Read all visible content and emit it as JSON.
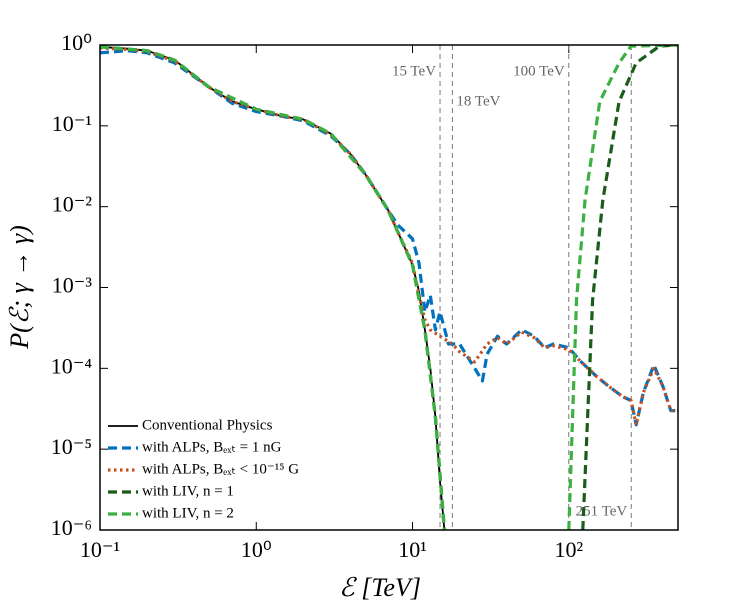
{
  "chart_data": {
    "type": "line",
    "xlabel": "ℰ [TeV]",
    "ylabel": "P(ℰ; γ → γ)",
    "xscale": "log",
    "yscale": "log",
    "xlim": [
      0.1,
      500
    ],
    "ylim": [
      1e-06,
      1
    ],
    "xticks": [
      {
        "value": 0.1,
        "label": "10⁻¹"
      },
      {
        "value": 1,
        "label": "10⁰"
      },
      {
        "value": 10,
        "label": "10¹"
      },
      {
        "value": 100,
        "label": "10²"
      }
    ],
    "yticks": [
      {
        "value": 1e-06,
        "label": "10⁻⁶"
      },
      {
        "value": 1e-05,
        "label": "10⁻⁵"
      },
      {
        "value": 0.0001,
        "label": "10⁻⁴"
      },
      {
        "value": 0.001,
        "label": "10⁻³"
      },
      {
        "value": 0.01,
        "label": "10⁻²"
      },
      {
        "value": 0.1,
        "label": "10⁻¹"
      },
      {
        "value": 1,
        "label": "10⁰"
      }
    ],
    "grid": false,
    "legend": "lower left",
    "annotations": [
      {
        "x": 15,
        "label": "15 TeV"
      },
      {
        "x": 18,
        "label": "18 TeV"
      },
      {
        "x": 100,
        "label": "100 TeV"
      },
      {
        "x": 251,
        "label": "251 TeV"
      }
    ],
    "series": [
      {
        "name": "Conventional Physics",
        "color": "#000000",
        "dash": "solid",
        "x": [
          0.1,
          0.15,
          0.2,
          0.3,
          0.5,
          0.7,
          1,
          1.5,
          2,
          3,
          4,
          5,
          7,
          8,
          10,
          11,
          12,
          13,
          14,
          15,
          16
        ],
        "values": [
          0.95,
          0.9,
          0.85,
          0.65,
          0.3,
          0.2,
          0.16,
          0.13,
          0.12,
          0.08,
          0.045,
          0.025,
          0.009,
          0.005,
          0.0019,
          0.0009,
          0.0003,
          0.0001,
          2.5e-05,
          4e-06,
          1e-06
        ]
      },
      {
        "name": "with ALPs, Bₑₓₜ = 1 nG",
        "color": "#0072bd",
        "dash": "dashed",
        "x": [
          0.1,
          0.15,
          0.2,
          0.3,
          0.5,
          0.7,
          1,
          1.5,
          2,
          3,
          4,
          5,
          7,
          8,
          10,
          11,
          12,
          13,
          14,
          15,
          17,
          20,
          25,
          28,
          30,
          35,
          40,
          50,
          60,
          70,
          80,
          100,
          120,
          150,
          180,
          220,
          250,
          270,
          300,
          350,
          400,
          450,
          500
        ],
        "values": [
          0.8,
          0.85,
          0.8,
          0.6,
          0.3,
          0.19,
          0.15,
          0.13,
          0.115,
          0.075,
          0.045,
          0.025,
          0.009,
          0.006,
          0.004,
          0.002,
          0.0005,
          0.0008,
          0.0003,
          0.0005,
          0.0002,
          0.0002,
          0.0001,
          7e-05,
          0.00015,
          0.00025,
          0.0002,
          0.0003,
          0.00025,
          0.00018,
          0.0002,
          0.00018,
          0.00012,
          8e-05,
          6e-05,
          4.5e-05,
          4e-05,
          2e-05,
          5e-05,
          0.00011,
          6e-05,
          3e-05,
          3e-05
        ]
      },
      {
        "name": "with ALPs, Bₑₓₜ < 10⁻¹⁵ G",
        "color": "#c8501e",
        "dash": "dotted",
        "x": [
          0.1,
          0.15,
          0.2,
          0.3,
          0.5,
          0.7,
          1,
          1.5,
          2,
          3,
          4,
          5,
          7,
          8,
          10,
          11,
          12,
          13,
          15,
          18,
          20,
          25,
          30,
          35,
          40,
          50,
          60,
          70,
          80,
          100,
          120,
          150,
          180,
          220,
          250,
          270,
          300,
          350,
          400,
          450,
          500
        ],
        "values": [
          0.92,
          0.88,
          0.83,
          0.63,
          0.3,
          0.2,
          0.16,
          0.13,
          0.12,
          0.078,
          0.045,
          0.025,
          0.009,
          0.005,
          0.002,
          0.0008,
          0.0004,
          0.0003,
          0.00025,
          0.0002,
          0.00016,
          0.00012,
          0.0002,
          0.00024,
          0.0002,
          0.00028,
          0.00024,
          0.00018,
          0.00019,
          0.00017,
          0.00012,
          8e-05,
          6e-05,
          4.5e-05,
          4e-05,
          2e-05,
          5e-05,
          0.0001,
          6e-05,
          3e-05,
          3e-05
        ]
      },
      {
        "name": "with LIV, n = 1",
        "color": "#1a5c1a",
        "dash": "dashed",
        "x": [
          0.1,
          0.2,
          0.3,
          0.5,
          1,
          2,
          3,
          5,
          7,
          10,
          12,
          14,
          16,
          20,
          123,
          142,
          165,
          210,
          270,
          380,
          500
        ],
        "values": [
          0.95,
          0.85,
          0.65,
          0.3,
          0.16,
          0.12,
          0.08,
          0.025,
          0.009,
          0.0019,
          0.0003,
          2.5e-05,
          1e-06,
          null,
          1e-06,
          0.0007,
          0.012,
          0.2,
          0.6,
          0.97,
          1
        ]
      },
      {
        "name": "with LIV, n = 2",
        "color": "#3cb043",
        "dash": "dashed",
        "x": [
          0.1,
          0.2,
          0.3,
          0.5,
          1,
          2,
          3,
          5,
          7,
          10,
          12,
          14,
          16,
          20,
          100,
          112,
          127,
          158,
          210,
          250,
          500
        ],
        "values": [
          0.95,
          0.85,
          0.65,
          0.3,
          0.16,
          0.12,
          0.08,
          0.025,
          0.009,
          0.0019,
          0.0003,
          2.5e-05,
          1e-06,
          null,
          1e-06,
          0.0007,
          0.012,
          0.2,
          0.6,
          0.97,
          1
        ]
      }
    ]
  }
}
